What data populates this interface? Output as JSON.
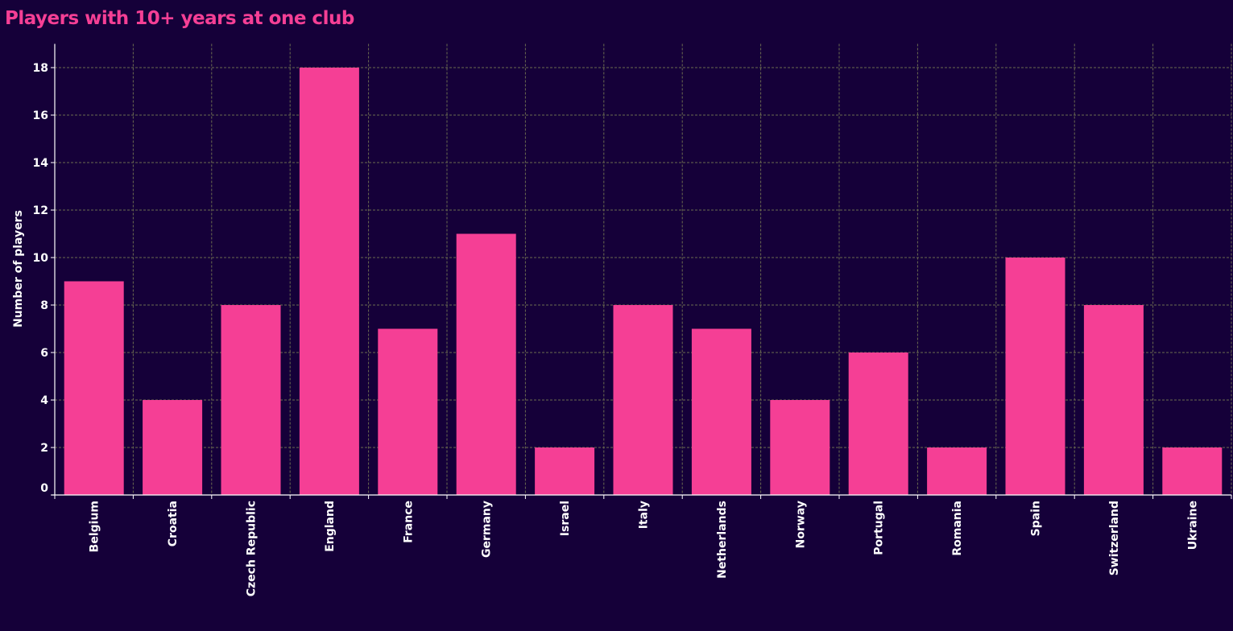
{
  "title": "Players with 10+ years at one club",
  "colors": {
    "background": "#150039",
    "bar": "#f53f95",
    "title": "#f53f95",
    "text": "#ffffff",
    "grid": "#6b6b50"
  },
  "chart_data": {
    "type": "bar",
    "title": "Players with 10+ years at one club",
    "xlabel": "",
    "ylabel": "Number of players",
    "categories": [
      "Belgium",
      "Croatia",
      "Czech Republic",
      "England",
      "France",
      "Germany",
      "Israel",
      "Italy",
      "Netherlands",
      "Norway",
      "Portugal",
      "Romania",
      "Spain",
      "Switzerland",
      "Ukraine"
    ],
    "values": [
      9,
      4,
      8,
      18,
      7,
      11,
      2,
      8,
      7,
      4,
      6,
      2,
      10,
      8,
      2
    ],
    "ylim": [
      0,
      19
    ],
    "yticks": [
      0,
      2,
      4,
      6,
      8,
      10,
      12,
      14,
      16,
      18
    ],
    "grid": true,
    "grid_style": "dashed"
  }
}
